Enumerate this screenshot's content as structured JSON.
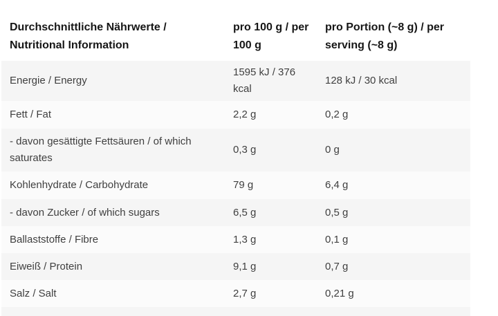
{
  "table": {
    "header": {
      "nutrient": "Durchschnittliche Nährwerte / Nutritional Information",
      "per_100g": "pro 100 g / per 100 g",
      "per_serving": "pro Portion (~8 g) / per serving (~8 g)"
    },
    "rows": [
      {
        "label": "Energie / Energy",
        "per_100g": "1595 kJ / 376 kcal",
        "per_serving": "128 kJ / 30 kcal"
      },
      {
        "label": "Fett / Fat",
        "per_100g": "2,2 g",
        "per_serving": "0,2 g"
      },
      {
        "label": "- davon gesättigte Fettsäuren / of which saturates",
        "per_100g": "0,3 g",
        "per_serving": "0 g"
      },
      {
        "label": "Kohlenhydrate / Carbohydrate",
        "per_100g": "79 g",
        "per_serving": "6,4 g"
      },
      {
        "label": "- davon Zucker / of which sugars",
        "per_100g": "6,5 g",
        "per_serving": "0,5 g"
      },
      {
        "label": "Ballaststoffe / Fibre",
        "per_100g": "1,3 g",
        "per_serving": "0,1 g"
      },
      {
        "label": "Eiweiß / Protein",
        "per_100g": "9,1 g",
        "per_serving": "0,7 g"
      },
      {
        "label": "Salz / Salt",
        "per_100g": "2,7 g",
        "per_serving": "0,21 g"
      }
    ],
    "colors": {
      "row_shade": "#f5f5f5",
      "row_light": "#fbfbfb",
      "header_text": "#161616",
      "body_text": "#3f3f3f"
    }
  }
}
